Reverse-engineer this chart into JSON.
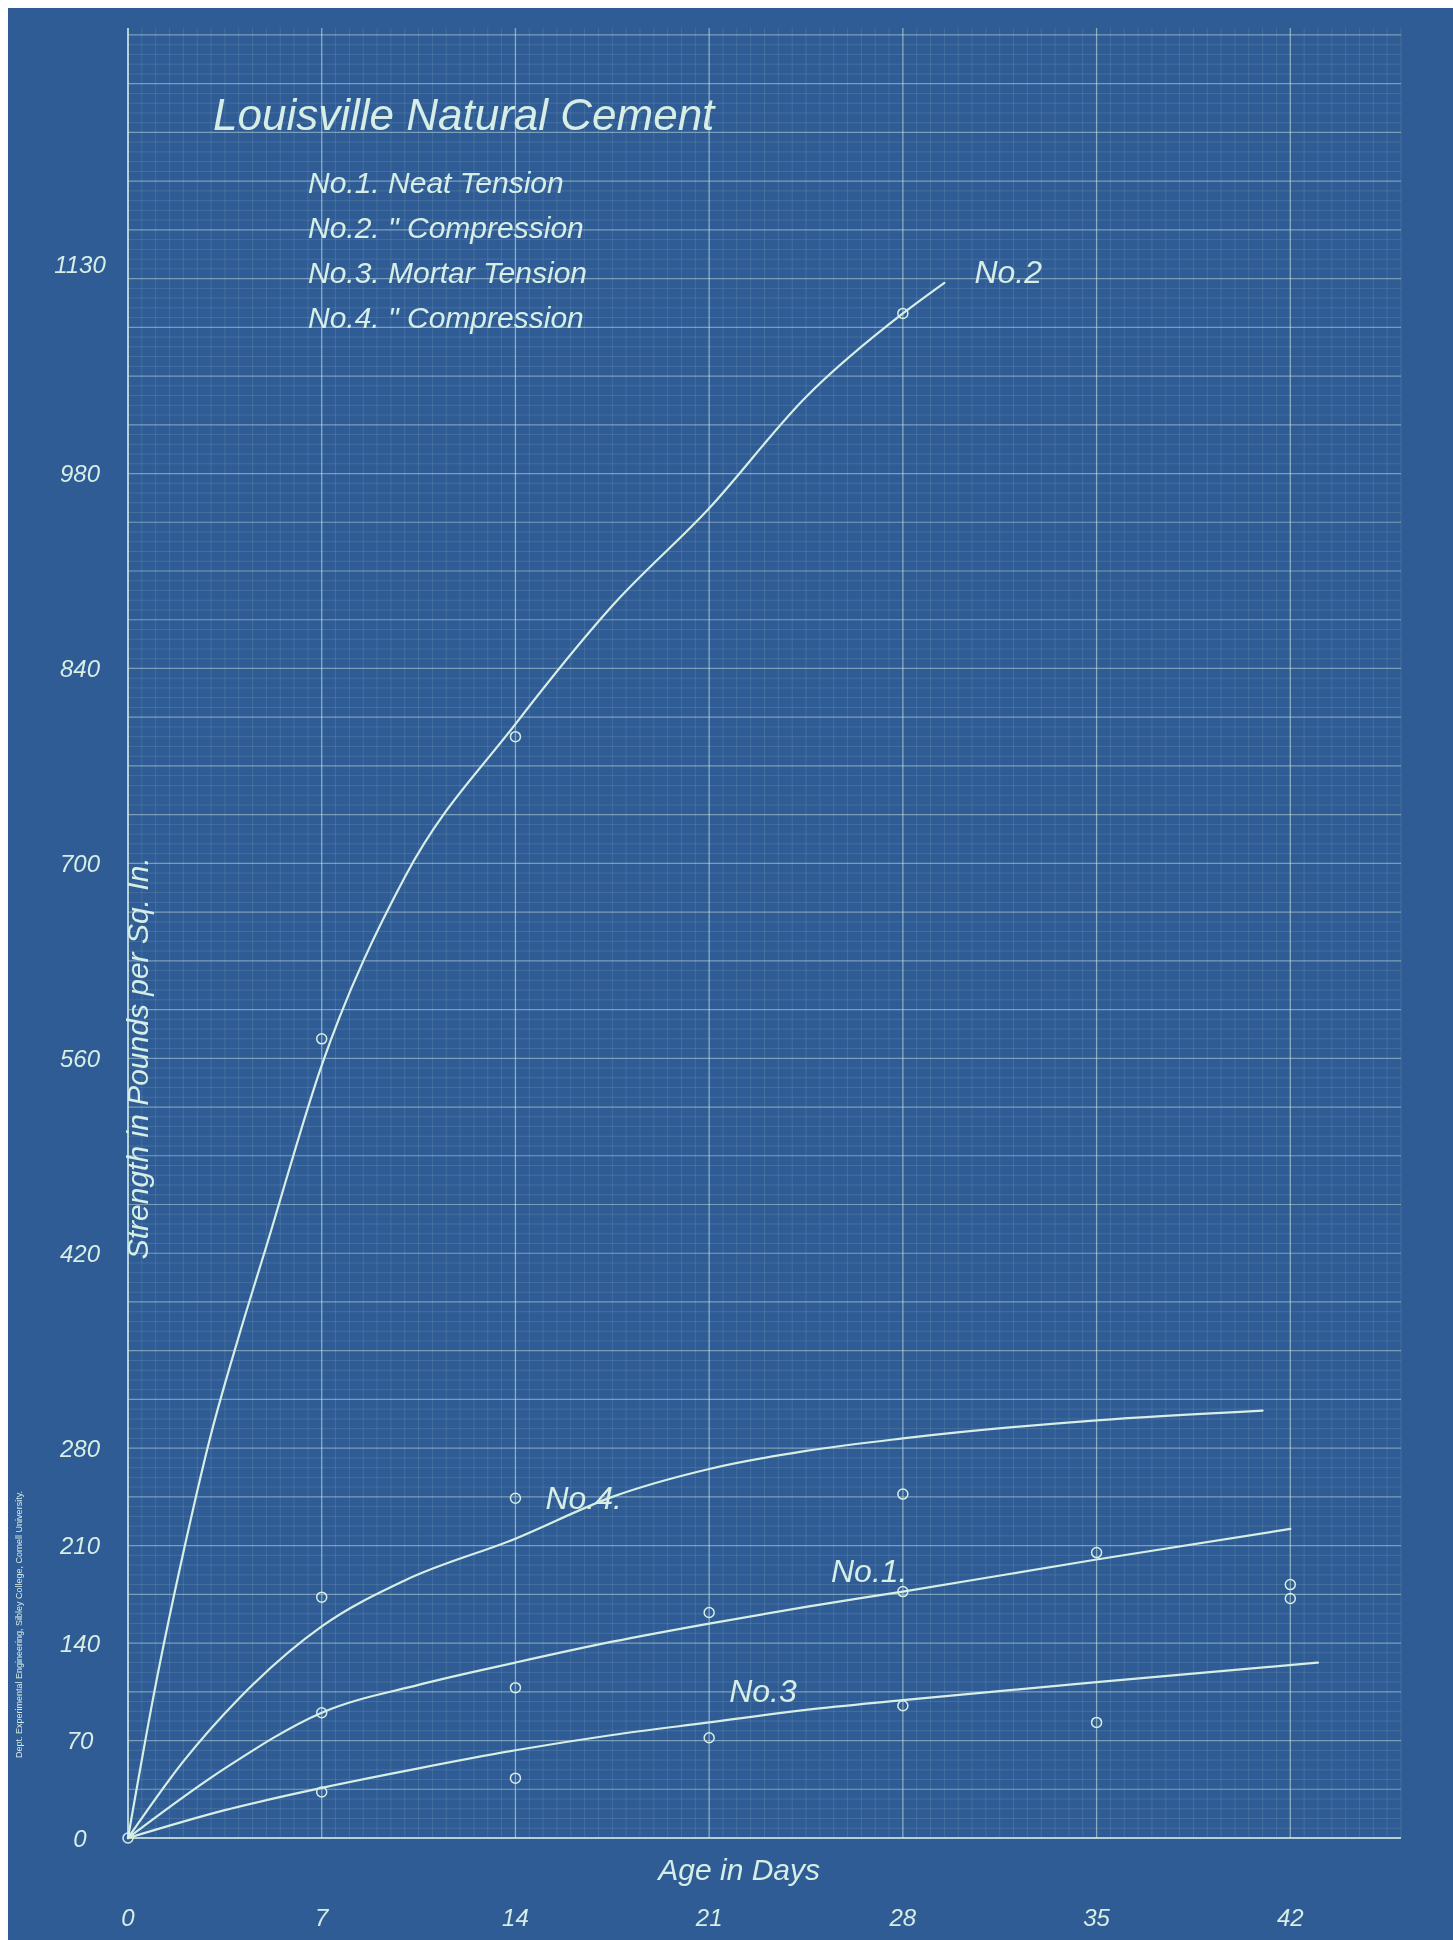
{
  "chart_data": {
    "type": "line",
    "title": "Louisville Natural Cement",
    "xlabel": "Age in Days",
    "ylabel": "Strength in Pounds per Sq. In.",
    "xlim": [
      0,
      46
    ],
    "ylim": [
      0,
      1300
    ],
    "xticks": [
      0,
      7,
      14,
      21,
      28,
      35,
      42
    ],
    "yticks": [
      0,
      70,
      140,
      210,
      280,
      420,
      560,
      700,
      840,
      980,
      1130
    ],
    "grid": true,
    "marker": "none",
    "line_style": "solid",
    "series": [
      {
        "name": "No.2",
        "color": "#d6eee6",
        "x": [
          0,
          1,
          2,
          3,
          4,
          5,
          7,
          10,
          14,
          17.5,
          21,
          24.5,
          28,
          29.5
        ],
        "values": [
          0,
          110,
          205,
          290,
          360,
          425,
          555,
          690,
          800,
          885,
          955,
          1035,
          1095,
          1117
        ]
      },
      {
        "name": "No.4.",
        "color": "#d6eee6",
        "x": [
          0,
          2,
          4,
          7,
          10,
          14,
          17.5,
          21,
          24.5,
          28,
          35,
          41
        ],
        "values": [
          0,
          55,
          100,
          152,
          185,
          215,
          245,
          265,
          278,
          287,
          300,
          307
        ]
      },
      {
        "name": "No.1.",
        "color": "#d6eee6",
        "x": [
          0,
          3.5,
          7,
          10.5,
          14,
          17.5,
          21,
          24.5,
          28,
          35,
          42
        ],
        "values": [
          0,
          50,
          90,
          110,
          126,
          141,
          154,
          166,
          177,
          200,
          222
        ]
      },
      {
        "name": "No.3",
        "color": "#d6eee6",
        "x": [
          0,
          3.5,
          7,
          10.5,
          14,
          17.5,
          21,
          24.5,
          28,
          35,
          43
        ],
        "values": [
          0,
          20,
          36,
          50,
          63,
          74,
          83,
          92,
          99,
          112,
          126
        ]
      },
      {
        "type": "scatter",
        "marker": "circle",
        "color": "#d6eee6",
        "x": [
          0,
          7,
          14,
          28
        ],
        "values": [
          0,
          574,
          791,
          1095
        ]
      },
      {
        "type": "scatter",
        "marker": "circle",
        "color": "#d6eee6",
        "x": [
          7,
          14,
          28,
          42
        ],
        "values": [
          173,
          244,
          247,
          182
        ]
      },
      {
        "type": "scatter",
        "marker": "circle",
        "color": "#d6eee6",
        "x": [
          7,
          14,
          21,
          28,
          35,
          42
        ],
        "values": [
          90,
          108,
          162,
          177,
          205,
          172
        ]
      },
      {
        "type": "scatter",
        "marker": "circle",
        "color": "#d6eee6",
        "x": [
          7,
          14,
          21,
          28,
          35
        ],
        "values": [
          33,
          43,
          72,
          95,
          83
        ]
      }
    ],
    "annotations": [
      "No.1. Neat Tension",
      "No.2. \" Compression",
      "No.3. Mortar Tension",
      "No.4. \" Compression",
      "Dept. Experimental Engineering, Sibley College, Cornell University."
    ]
  }
}
